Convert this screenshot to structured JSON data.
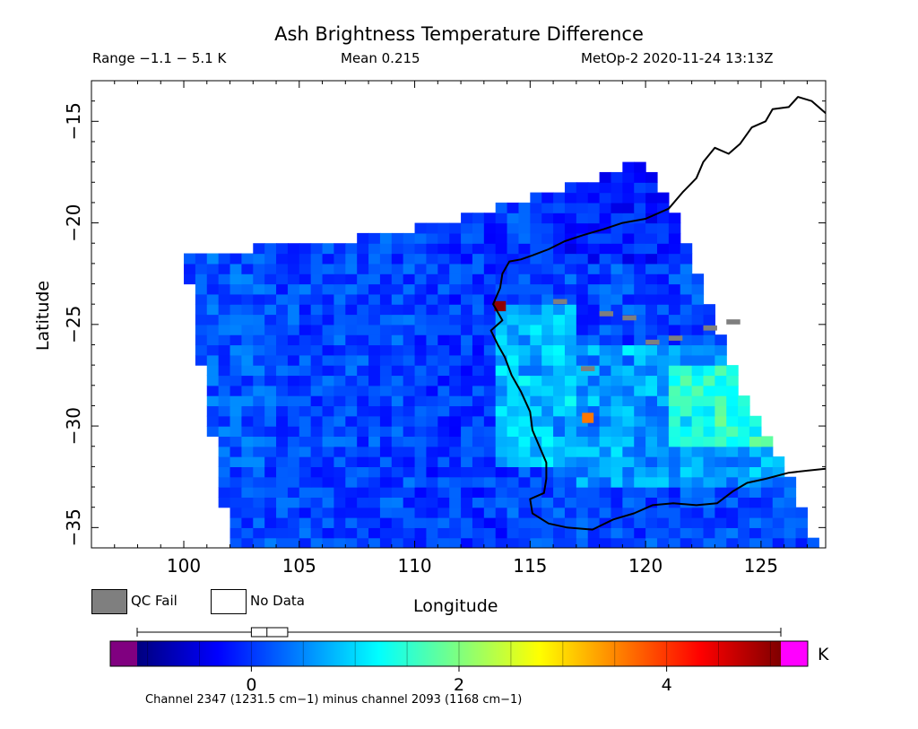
{
  "chart_data": {
    "type": "heatmap",
    "title": "Ash Brightness Temperature Difference",
    "range_text": "Range −1.1 − 5.1 K",
    "mean_text": "Mean 0.215",
    "satellite_text": "MetOp-2 2020-11-24 13:13Z",
    "xlabel": "Longitude",
    "ylabel": "Latitude",
    "xlim": [
      96,
      127.8
    ],
    "ylim": [
      -36,
      -13
    ],
    "x_ticks": [
      100,
      105,
      110,
      115,
      120,
      125
    ],
    "x_tick_labels": [
      "100",
      "105",
      "110",
      "115",
      "120",
      "125"
    ],
    "y_ticks": [
      -15,
      -20,
      -25,
      -30,
      -35
    ],
    "y_tick_labels": [
      "−15",
      "−20",
      "−25",
      "−30",
      "−35"
    ],
    "swath": {
      "upper_edge": [
        [
          100,
          -21.4
        ],
        [
          106,
          -21.1
        ],
        [
          111,
          -20.0
        ],
        [
          116,
          -18.5
        ],
        [
          120,
          -16.8
        ]
      ],
      "left_edge_bottom": [
        102,
        -36
      ],
      "right_edge": [
        [
          120,
          -16.8
        ],
        [
          121.5,
          -20
        ],
        [
          124,
          -28
        ],
        [
          126,
          -32
        ],
        [
          127.5,
          -36
        ]
      ]
    },
    "hotspots": [
      {
        "lon": 113.7,
        "lat": -24.1,
        "value": 5.0
      },
      {
        "lon": 117.5,
        "lat": -29.6,
        "value": 3.6
      }
    ],
    "qc_fail": [
      {
        "lon": 116.0,
        "lat": -24.0
      },
      {
        "lon": 118.0,
        "lat": -24.6
      },
      {
        "lon": 119.0,
        "lat": -24.8
      },
      {
        "lon": 120.0,
        "lat": -26.0
      },
      {
        "lon": 121.0,
        "lat": -25.8
      },
      {
        "lon": 122.5,
        "lat": -25.3
      },
      {
        "lon": 123.5,
        "lat": -25.0
      },
      {
        "lon": 117.2,
        "lat": -27.3
      }
    ],
    "colorbar": {
      "unit": "K",
      "ticks": [
        0,
        2,
        4
      ],
      "tick_labels": [
        "0",
        "2",
        "4"
      ],
      "range": [
        -1.1,
        5.1
      ],
      "colors": [
        "#00007f",
        "#0000ff",
        "#007fff",
        "#00ffff",
        "#7fff7f",
        "#ffff00",
        "#ff7f00",
        "#ff0000",
        "#7f0000"
      ],
      "under_color": "#800080",
      "over_color": "#ff00ff",
      "box_range": [
        0.0,
        0.35
      ],
      "box_median": 0.15,
      "whisker_range": [
        -1.1,
        5.1
      ]
    },
    "legend": {
      "qc_fail_label": "QC Fail",
      "no_data_label": "No Data",
      "qc_fail_color": "#7f7f7f"
    },
    "caption": "Channel 2347 (1231.5 cm−1) minus channel 2093 (1168 cm−1)"
  }
}
